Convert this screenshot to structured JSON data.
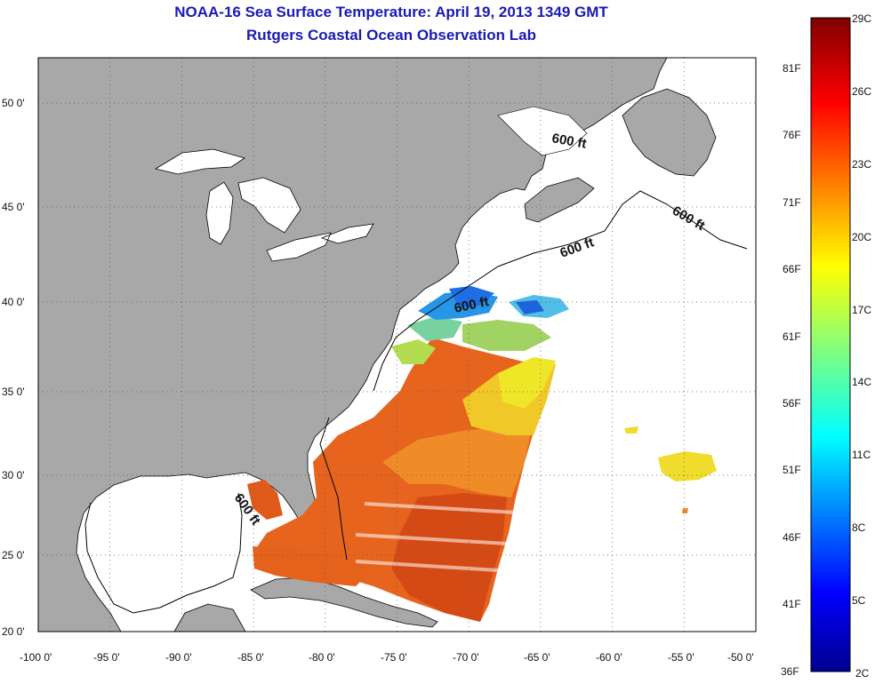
{
  "title": {
    "line1": "NOAA-16 Sea Surface Temperature:  April 19, 2013 1349 GMT",
    "line2": "Rutgers Coastal Ocean Observation Lab"
  },
  "map": {
    "lon_range": [
      -100,
      -50
    ],
    "lat_range": [
      20,
      53
    ],
    "grid": "dotted",
    "land_color": "#a8a8a8",
    "ocean_color": "#ffffff",
    "lon_ticks": [
      "-100 0'",
      "-95 0'",
      "-90 0'",
      "-85 0'",
      "-80 0'",
      "-75 0'",
      "-70 0'",
      "-65 0'",
      "-60 0'",
      "-55 0'",
      "-50 0'"
    ],
    "lat_ticks": [
      "20 0'",
      "25 0'",
      "30 0'",
      "35 0'",
      "40 0'",
      "45 0'",
      "50 0'"
    ],
    "contour_label": "600 ft"
  },
  "colorbar": {
    "fahrenheit_labels": [
      "81F",
      "76F",
      "71F",
      "66F",
      "61F",
      "56F",
      "51F",
      "46F",
      "41F",
      "36F"
    ],
    "celsius_labels": [
      "29C",
      "26C",
      "23C",
      "20C",
      "17C",
      "14C",
      "11C",
      "8C",
      "5C",
      "2C"
    ],
    "range_c": [
      2,
      29
    ],
    "colormap": "jet"
  }
}
